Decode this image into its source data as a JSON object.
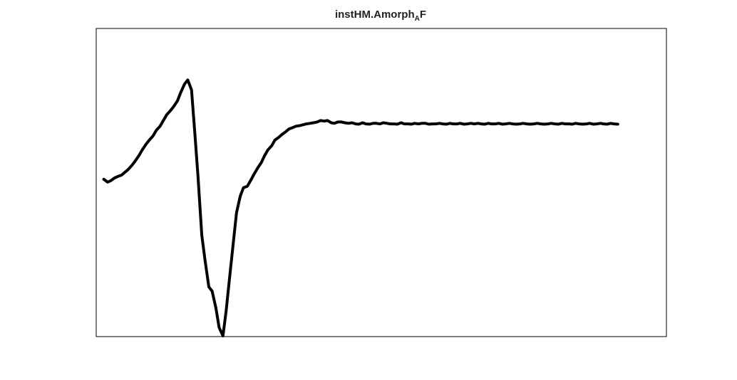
{
  "chart_data": {
    "type": "line",
    "title": "instHM.Amorph",
    "title_subscript": "A",
    "title_suffix": "F",
    "xlabel": "",
    "ylabel": "",
    "axis_ticks_visible": false,
    "grid": false,
    "box": true,
    "xlim": [
      0,
      1
    ],
    "ylim": [
      0,
      1
    ],
    "line_color": "#000000",
    "series": [
      {
        "x": [
          0.006,
          0.013,
          0.019,
          0.026,
          0.032,
          0.039,
          0.045,
          0.051,
          0.058,
          0.064,
          0.071,
          0.077,
          0.084,
          0.09,
          0.097,
          0.103,
          0.11,
          0.116,
          0.122,
          0.129,
          0.135,
          0.142,
          0.148,
          0.155,
          0.161,
          0.168,
          0.174,
          0.18,
          0.187,
          0.193,
          0.2,
          0.206,
          0.213,
          0.219,
          0.226,
          0.232,
          0.239,
          0.245,
          0.251,
          0.258,
          0.264,
          0.271,
          0.277,
          0.284,
          0.29,
          0.297,
          0.303,
          0.309,
          0.316,
          0.322,
          0.329,
          0.335,
          0.342,
          0.348,
          0.355,
          0.361,
          0.368,
          0.374,
          0.38,
          0.387,
          0.393,
          0.4,
          0.406,
          0.413,
          0.419,
          0.426,
          0.432,
          0.438,
          0.445,
          0.451,
          0.458,
          0.464,
          0.471,
          0.477,
          0.484,
          0.49,
          0.497,
          0.503,
          0.509,
          0.516,
          0.522,
          0.529,
          0.535,
          0.542,
          0.548,
          0.555,
          0.561,
          0.568,
          0.574,
          0.58,
          0.587,
          0.593,
          0.6,
          0.606,
          0.613,
          0.619,
          0.626,
          0.632,
          0.639,
          0.645,
          0.651,
          0.658,
          0.664,
          0.671,
          0.677,
          0.684,
          0.69,
          0.697,
          0.703,
          0.709,
          0.716,
          0.722,
          0.729,
          0.735,
          0.742,
          0.748,
          0.755,
          0.761,
          0.768,
          0.774,
          0.78,
          0.787,
          0.793,
          0.8,
          0.806,
          0.813,
          0.819,
          0.826,
          0.832,
          0.839,
          0.845,
          0.852,
          0.858,
          0.865,
          0.871,
          0.877,
          0.884,
          0.89,
          0.897,
          0.903,
          0.91,
          0.916,
          0.923,
          0.929,
          0.935,
          0.942,
          0.948,
          0.955
        ],
        "y": [
          0.56,
          0.55,
          0.555,
          0.565,
          0.57,
          0.575,
          0.585,
          0.595,
          0.61,
          0.625,
          0.645,
          0.665,
          0.685,
          0.7,
          0.715,
          0.735,
          0.75,
          0.77,
          0.79,
          0.805,
          0.82,
          0.84,
          0.87,
          0.9,
          0.915,
          0.88,
          0.73,
          0.57,
          0.36,
          0.27,
          0.175,
          0.16,
          0.1,
          0.03,
          0.0,
          0.09,
          0.22,
          0.33,
          0.44,
          0.5,
          0.53,
          0.535,
          0.555,
          0.58,
          0.6,
          0.62,
          0.645,
          0.665,
          0.68,
          0.7,
          0.71,
          0.72,
          0.73,
          0.74,
          0.745,
          0.75,
          0.752,
          0.755,
          0.758,
          0.76,
          0.762,
          0.765,
          0.77,
          0.768,
          0.77,
          0.762,
          0.76,
          0.765,
          0.765,
          0.762,
          0.76,
          0.762,
          0.758,
          0.757,
          0.762,
          0.758,
          0.757,
          0.76,
          0.76,
          0.758,
          0.762,
          0.76,
          0.758,
          0.758,
          0.757,
          0.762,
          0.758,
          0.758,
          0.757,
          0.76,
          0.758,
          0.76,
          0.76,
          0.757,
          0.758,
          0.758,
          0.76,
          0.758,
          0.757,
          0.76,
          0.758,
          0.758,
          0.76,
          0.757,
          0.758,
          0.76,
          0.758,
          0.76,
          0.758,
          0.757,
          0.76,
          0.758,
          0.758,
          0.76,
          0.757,
          0.758,
          0.76,
          0.758,
          0.757,
          0.758,
          0.76,
          0.758,
          0.757,
          0.758,
          0.76,
          0.758,
          0.757,
          0.758,
          0.76,
          0.758,
          0.757,
          0.76,
          0.758,
          0.758,
          0.757,
          0.76,
          0.758,
          0.757,
          0.758,
          0.76,
          0.757,
          0.758,
          0.76,
          0.758,
          0.757,
          0.76,
          0.758,
          0.757
        ]
      }
    ]
  }
}
